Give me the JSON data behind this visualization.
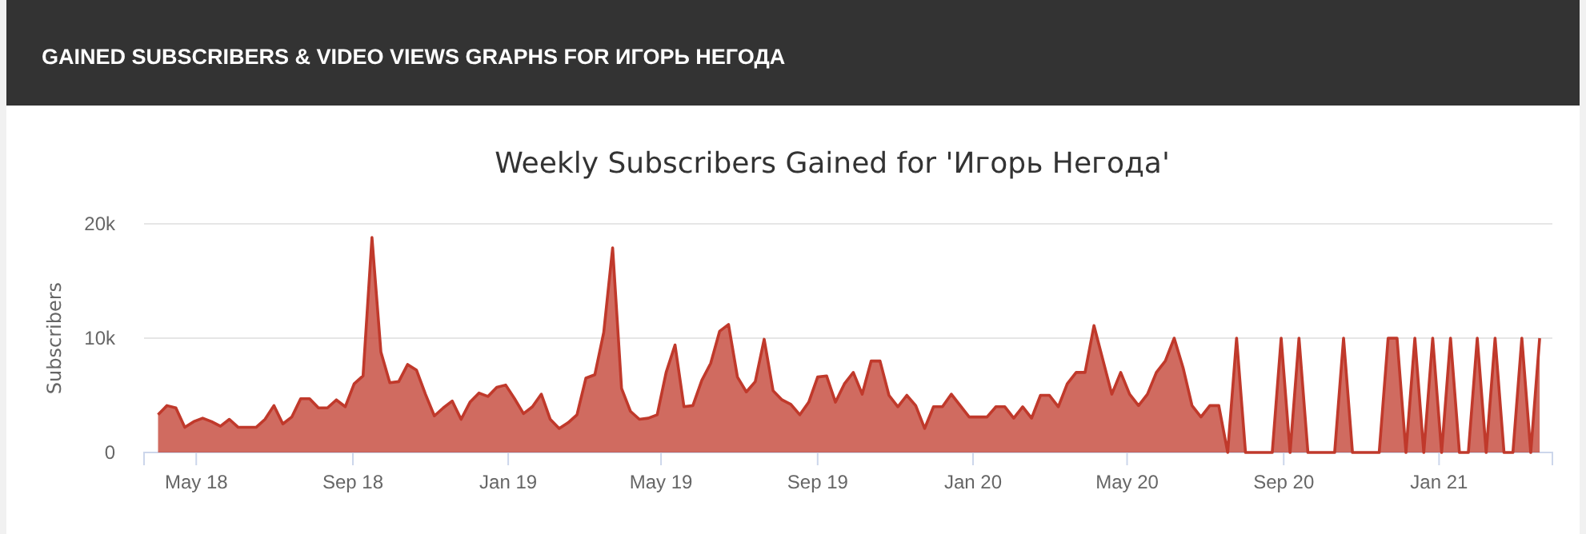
{
  "chart_data": {
    "type": "area",
    "title": "Weekly Subscribers Gained for 'Игорь Негода'",
    "annotations": [
      "GAINED SUBSCRIBERS & VIDEO VIEWS GRAPHS FOR ИГОРЬ НЕГОДА"
    ],
    "ylabel": "Subscribers",
    "x": [
      "2018-04-01",
      "2018-04-08",
      "2018-04-15",
      "2018-04-22",
      "2018-04-29",
      "2018-05-06",
      "2018-05-13",
      "2018-05-20",
      "2018-05-27",
      "2018-06-03",
      "2018-06-10",
      "2018-06-17",
      "2018-06-24",
      "2018-07-01",
      "2018-07-08",
      "2018-07-15",
      "2018-07-22",
      "2018-07-29",
      "2018-08-05",
      "2018-08-12",
      "2018-08-19",
      "2018-08-26",
      "2018-09-02",
      "2018-09-09",
      "2018-09-16",
      "2018-09-23",
      "2018-09-30",
      "2018-10-07",
      "2018-10-14",
      "2018-10-21",
      "2018-10-28",
      "2018-11-04",
      "2018-11-11",
      "2018-11-18",
      "2018-11-25",
      "2018-12-02",
      "2018-12-09",
      "2018-12-16",
      "2018-12-23",
      "2018-12-30",
      "2019-01-06",
      "2019-01-13",
      "2019-01-20",
      "2019-01-27",
      "2019-02-03",
      "2019-02-10",
      "2019-02-17",
      "2019-02-24",
      "2019-03-03",
      "2019-03-10",
      "2019-03-17",
      "2019-03-24",
      "2019-03-31",
      "2019-04-07",
      "2019-04-14",
      "2019-04-21",
      "2019-04-28",
      "2019-05-05",
      "2019-05-12",
      "2019-05-19",
      "2019-05-26",
      "2019-06-02",
      "2019-06-09",
      "2019-06-16",
      "2019-06-23",
      "2019-06-30",
      "2019-07-07",
      "2019-07-14",
      "2019-07-21",
      "2019-07-28",
      "2019-08-04",
      "2019-08-11",
      "2019-08-18",
      "2019-08-25",
      "2019-09-01",
      "2019-09-08",
      "2019-09-15",
      "2019-09-22",
      "2019-09-29",
      "2019-10-06",
      "2019-10-13",
      "2019-10-20",
      "2019-10-27",
      "2019-11-03",
      "2019-11-10",
      "2019-11-17",
      "2019-11-24",
      "2019-12-01",
      "2019-12-08",
      "2019-12-15",
      "2019-12-22",
      "2019-12-29",
      "2020-01-05",
      "2020-01-12",
      "2020-01-19",
      "2020-01-26",
      "2020-02-02",
      "2020-02-09",
      "2020-02-16",
      "2020-02-23",
      "2020-03-01",
      "2020-03-08",
      "2020-03-15",
      "2020-03-22",
      "2020-03-29",
      "2020-04-05",
      "2020-04-12",
      "2020-04-19",
      "2020-04-26",
      "2020-05-03",
      "2020-05-10",
      "2020-05-17",
      "2020-05-24",
      "2020-05-31",
      "2020-06-07",
      "2020-06-14",
      "2020-06-21",
      "2020-06-28",
      "2020-07-05",
      "2020-07-12",
      "2020-07-19",
      "2020-07-26",
      "2020-08-02",
      "2020-08-09",
      "2020-08-16",
      "2020-08-23",
      "2020-08-30",
      "2020-09-06",
      "2020-09-13",
      "2020-09-20",
      "2020-09-27",
      "2020-10-04",
      "2020-10-11",
      "2020-10-18",
      "2020-10-25",
      "2020-11-01",
      "2020-11-08",
      "2020-11-15",
      "2020-11-22",
      "2020-11-29",
      "2020-12-06",
      "2020-12-13",
      "2020-12-20",
      "2020-12-27",
      "2021-01-03",
      "2021-01-10",
      "2021-01-17",
      "2021-01-24",
      "2021-01-31",
      "2021-02-07",
      "2021-02-14",
      "2021-02-21",
      "2021-02-28",
      "2021-03-07",
      "2021-03-14",
      "2021-03-21"
    ],
    "series": [
      {
        "color": "#c0392b",
        "values": [
          3300,
          4100,
          3900,
          2200,
          2700,
          3000,
          2700,
          2300,
          2900,
          2200,
          2200,
          2200,
          2900,
          4100,
          2500,
          3100,
          4700,
          4700,
          3900,
          3900,
          4600,
          4000,
          6000,
          6700,
          18800,
          8800,
          6100,
          6200,
          7700,
          7200,
          5100,
          3200,
          3900,
          4500,
          2900,
          4400,
          5200,
          4900,
          5700,
          5900,
          4700,
          3400,
          4000,
          5100,
          2900,
          2100,
          2600,
          3300,
          6500,
          6800,
          10500,
          17900,
          5600,
          3600,
          2900,
          3000,
          3300,
          7000,
          9400,
          4000,
          4100,
          6300,
          7800,
          10600,
          11200,
          6600,
          5300,
          6200,
          9900,
          5400,
          4600,
          4200,
          3300,
          4400,
          6600,
          6700,
          4400,
          6000,
          7000,
          5100,
          8000,
          8000,
          5000,
          4000,
          5000,
          4100,
          2100,
          4000,
          4000,
          5100,
          4100,
          3100,
          3100,
          3100,
          4000,
          4000,
          3000,
          4000,
          3000,
          5000,
          5000,
          4000,
          6000,
          7000,
          7000,
          11100,
          8100,
          5100,
          7000,
          5100,
          4100,
          5100,
          7000,
          8000,
          10000,
          7400,
          4100,
          3100,
          4100,
          4100,
          0,
          10000,
          0,
          0,
          0,
          0,
          10000,
          0,
          10000,
          0,
          0,
          0,
          0,
          10000,
          0,
          0,
          0,
          0,
          10000,
          10000,
          0,
          10000,
          0,
          10000,
          0,
          10000,
          0,
          0,
          10000,
          0,
          10000,
          0,
          0,
          10000,
          0,
          10000
        ]
      }
    ],
    "xlim": [
      "2018-03-21",
      "2021-03-31"
    ],
    "xticks": [
      {
        "value": "2018-05-01",
        "label": "May 18"
      },
      {
        "value": "2018-09-01",
        "label": "Sep 18"
      },
      {
        "value": "2019-01-01",
        "label": "Jan 19"
      },
      {
        "value": "2019-05-01",
        "label": "May 19"
      },
      {
        "value": "2019-09-01",
        "label": "Sep 19"
      },
      {
        "value": "2020-01-01",
        "label": "Jan 20"
      },
      {
        "value": "2020-05-01",
        "label": "May 20"
      },
      {
        "value": "2020-09-01",
        "label": "Sep 20"
      },
      {
        "value": "2021-01-01",
        "label": "Jan 21"
      }
    ],
    "ylim": [
      0,
      20000
    ],
    "yticks": [
      {
        "value": 0,
        "label": "0"
      },
      {
        "value": 10000,
        "label": "10k"
      },
      {
        "value": 20000,
        "label": "20k"
      }
    ],
    "grid": "y",
    "marker": "none",
    "line_style": "solid"
  }
}
